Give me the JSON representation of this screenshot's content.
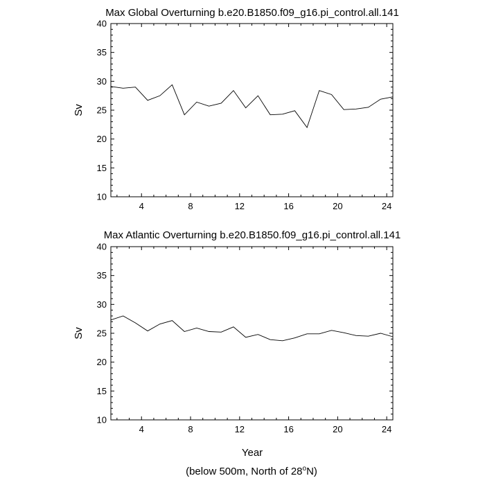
{
  "charts": [
    {
      "title": "Max Global Overturning b.e20.B1850.f09_g16.pi_control.all.141",
      "ylabel": "Sv"
    },
    {
      "title": "Max Atlantic Overturning b.e20.B1850.f09_g16.pi_control.all.141",
      "ylabel": "Sv",
      "xlabel": "Year"
    }
  ],
  "footer": {
    "prefix": "(below 500m, North of 28",
    "superscript": "o",
    "suffix": "N)"
  },
  "chart_data": [
    {
      "type": "line",
      "title": "Max Global Overturning b.e20.B1850.f09_g16.pi_control.all.141",
      "xlabel": "",
      "ylabel": "Sv",
      "xlim": [
        1.5,
        24.5
      ],
      "ylim": [
        10,
        40
      ],
      "xticks": [
        4,
        8,
        12,
        16,
        20,
        24
      ],
      "yticks": [
        10,
        15,
        20,
        25,
        30,
        35,
        40
      ],
      "x": [
        1.5,
        2.5,
        3.5,
        4.5,
        5.5,
        6.5,
        7.5,
        8.5,
        9.5,
        10.5,
        11.5,
        12.5,
        13.5,
        14.5,
        15.5,
        16.5,
        17.5,
        18.5,
        19.5,
        20.5,
        21.5,
        22.5,
        23.5,
        24.5
      ],
      "series": [
        {
          "name": "global",
          "values": [
            29.1,
            28.8,
            29.0,
            26.7,
            27.5,
            29.4,
            24.2,
            26.4,
            25.7,
            26.2,
            28.4,
            25.4,
            27.5,
            24.2,
            24.3,
            24.9,
            22.0,
            28.4,
            27.7,
            25.1,
            25.2,
            25.5,
            26.9,
            27.3
          ]
        }
      ],
      "grid": false,
      "legend": "none"
    },
    {
      "type": "line",
      "title": "Max Atlantic Overturning b.e20.B1850.f09_g16.pi_control.all.141",
      "xlabel": "Year",
      "ylabel": "Sv",
      "xlim": [
        1.5,
        24.5
      ],
      "ylim": [
        10,
        40
      ],
      "xticks": [
        4,
        8,
        12,
        16,
        20,
        24
      ],
      "yticks": [
        10,
        15,
        20,
        25,
        30,
        35,
        40
      ],
      "x": [
        1.5,
        2.5,
        3.5,
        4.5,
        5.5,
        6.5,
        7.5,
        8.5,
        9.5,
        10.5,
        11.5,
        12.5,
        13.5,
        14.5,
        15.5,
        16.5,
        17.5,
        18.5,
        19.5,
        20.5,
        21.5,
        22.5,
        23.5,
        24.5
      ],
      "series": [
        {
          "name": "atlantic",
          "values": [
            27.3,
            28.0,
            26.8,
            25.4,
            26.6,
            27.2,
            25.3,
            25.9,
            25.3,
            25.2,
            26.1,
            24.3,
            24.8,
            23.9,
            23.7,
            24.2,
            24.9,
            24.9,
            25.5,
            25.1,
            24.6,
            24.5,
            25.0,
            24.4
          ]
        }
      ],
      "grid": false,
      "legend": "none"
    }
  ]
}
